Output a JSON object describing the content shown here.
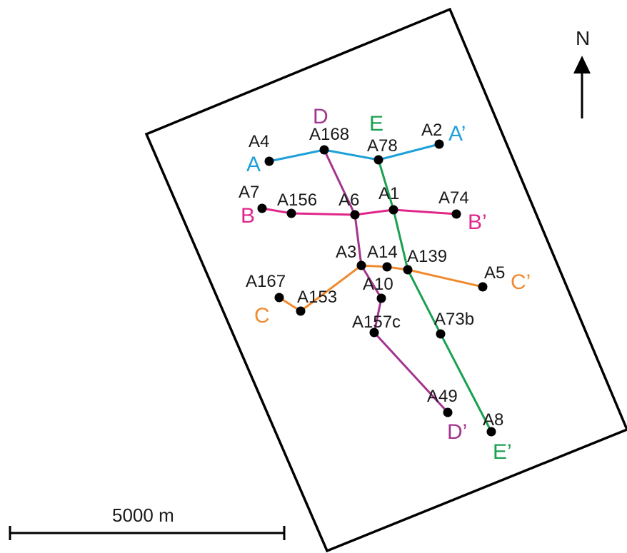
{
  "map": {
    "north_label": "N",
    "scale_label": "5000 m",
    "colors": {
      "A": "#1ea0d8",
      "B": "#e0278a",
      "C": "#f08a30",
      "D": "#a3358f",
      "E": "#1aa050",
      "wells": "#000000",
      "frame": "#000000"
    },
    "wells": [
      {
        "id": "A4",
        "label": "A4"
      },
      {
        "id": "A168",
        "label": "A168"
      },
      {
        "id": "A78",
        "label": "A78"
      },
      {
        "id": "A2",
        "label": "A2"
      },
      {
        "id": "A7",
        "label": "A7"
      },
      {
        "id": "A156",
        "label": "A156"
      },
      {
        "id": "A6",
        "label": "A6"
      },
      {
        "id": "A1",
        "label": "A1"
      },
      {
        "id": "A74",
        "label": "A74"
      },
      {
        "id": "A3",
        "label": "A3"
      },
      {
        "id": "A14",
        "label": "A14"
      },
      {
        "id": "A139",
        "label": "A139"
      },
      {
        "id": "A5",
        "label": "A5"
      },
      {
        "id": "A167",
        "label": "A167"
      },
      {
        "id": "A153",
        "label": "A153"
      },
      {
        "id": "A10",
        "label": "A10"
      },
      {
        "id": "A157c",
        "label": "A157c"
      },
      {
        "id": "A73b",
        "label": "A73b"
      },
      {
        "id": "A49",
        "label": "A49"
      },
      {
        "id": "A8",
        "label": "A8"
      }
    ],
    "sections": [
      {
        "id": "A",
        "start_label": "A",
        "end_label": "A’",
        "wells": [
          "A4",
          "A168",
          "A78",
          "A2"
        ]
      },
      {
        "id": "B",
        "start_label": "B",
        "end_label": "B’",
        "wells": [
          "A7",
          "A156",
          "A6",
          "A1",
          "A74"
        ]
      },
      {
        "id": "C",
        "start_label": "C",
        "end_label": "C’",
        "wells": [
          "A153",
          "A167",
          "A153",
          "A3",
          "A14",
          "A139",
          "A5"
        ]
      },
      {
        "id": "D",
        "start_label": "D",
        "end_label": "D’",
        "wells": [
          "A168",
          "A6",
          "A3",
          "A10",
          "A157c",
          "A49"
        ]
      },
      {
        "id": "E",
        "start_label": "E",
        "end_label": "E’",
        "wells": [
          "A78",
          "A1",
          "A139",
          "A73b",
          "A8"
        ]
      }
    ]
  }
}
